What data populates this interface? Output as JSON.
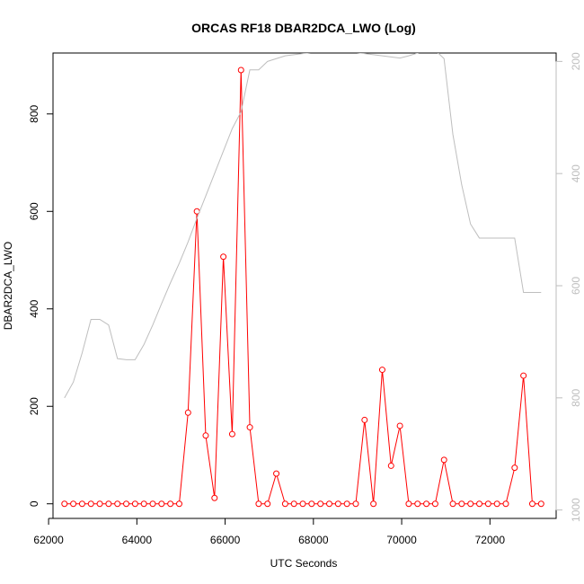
{
  "chart_data": {
    "type": "line",
    "title": "ORCAS RF18 DBAR2DCA_LWO (Log)",
    "xlabel": "UTC Seconds",
    "ylabel": "DBAR2DCA_LWO",
    "xlim": [
      62100,
      73500
    ],
    "ylim": [
      -30,
      925
    ],
    "xticks": [
      62000,
      64000,
      66000,
      68000,
      70000,
      72000
    ],
    "yticks": [
      0,
      200,
      400,
      600,
      800
    ],
    "y2lim": [
      1015,
      185
    ],
    "y2ticks": [
      200,
      400,
      600,
      800,
      1000
    ],
    "series": [
      {
        "color": "#ff0000",
        "marker": "open-circle",
        "axis": "left",
        "x": [
          62360,
          62560,
          62760,
          62960,
          63160,
          63360,
          63560,
          63760,
          63960,
          64160,
          64360,
          64560,
          64760,
          64960,
          65160,
          65360,
          65560,
          65760,
          65960,
          66160,
          66360,
          66560,
          66760,
          66960,
          67160,
          67360,
          67560,
          67760,
          67960,
          68160,
          68360,
          68560,
          68760,
          68960,
          69160,
          69360,
          69560,
          69760,
          69960,
          70160,
          70360,
          70560,
          70760,
          70960,
          71160,
          71360,
          71560,
          71760,
          71960,
          72160,
          72360,
          72560,
          72760,
          72960,
          73160
        ],
        "y": [
          0,
          0,
          0,
          0,
          0,
          0,
          0,
          0,
          0,
          0,
          0,
          0,
          0,
          0,
          187,
          600,
          140,
          12,
          507,
          143,
          890,
          157,
          0,
          0,
          62,
          0,
          0,
          0,
          0,
          0,
          0,
          0,
          0,
          0,
          172,
          0,
          275,
          78,
          160,
          0,
          0,
          0,
          0,
          90,
          0,
          0,
          0,
          0,
          0,
          0,
          0,
          74,
          263,
          0,
          0
        ]
      },
      {
        "color": "#bebebe",
        "axis": "right",
        "x": [
          62360,
          62560,
          62760,
          62960,
          63160,
          63360,
          63560,
          63760,
          63960,
          64160,
          64360,
          64560,
          64760,
          64960,
          65160,
          65360,
          65560,
          65760,
          65960,
          66160,
          66360,
          66560,
          66760,
          66960,
          67160,
          67360,
          67560,
          67760,
          67960,
          68160,
          68360,
          68560,
          68760,
          68960,
          69160,
          69360,
          69560,
          69760,
          69960,
          70160,
          70360,
          70560,
          70760,
          70960,
          71160,
          71360,
          71560,
          71760,
          71960,
          72160,
          72360,
          72560,
          72760,
          72960,
          73160
        ],
        "y": [
          800,
          772,
          720,
          660,
          660,
          670,
          730,
          732,
          732,
          705,
          670,
          632,
          595,
          560,
          522,
          480,
          440,
          400,
          360,
          320,
          290,
          215,
          215,
          200,
          195,
          190,
          188,
          186,
          184,
          182,
          180,
          180,
          182,
          184,
          186,
          188,
          190,
          192,
          194,
          190,
          185,
          180,
          180,
          195,
          330,
          420,
          490,
          515,
          515,
          515,
          515,
          515,
          612,
          612,
          612
        ]
      }
    ]
  }
}
